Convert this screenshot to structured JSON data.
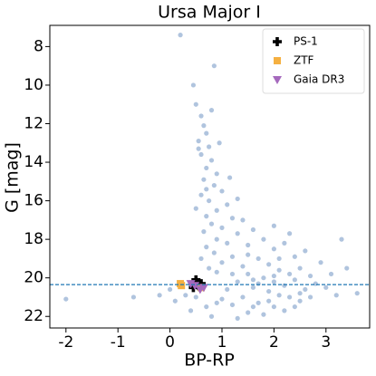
{
  "chart_data": {
    "type": "scatter",
    "title": "Ursa Major I",
    "x_label": "BP-RP",
    "y_label": "G [mag]",
    "xlim": [
      -2.31,
      3.84
    ],
    "ylim": [
      22.6,
      6.9
    ],
    "y_inverted": true,
    "xticks": [
      -2,
      -1,
      0,
      1,
      2,
      3
    ],
    "yticks": [
      8,
      10,
      12,
      14,
      16,
      18,
      20,
      22
    ],
    "hline": 20.35,
    "hline_color": "#1f77b4",
    "legend": "upper right",
    "series": [
      {
        "color": "#b0c4de",
        "marker": "circle",
        "x": [
          0.6,
          0.65,
          0.7,
          0.55,
          0.75,
          0.6,
          0.8,
          0.7,
          0.9,
          0.65,
          0.85,
          1.0,
          0.6,
          0.75,
          1.1,
          0.9,
          0.7,
          1.2,
          0.8,
          1.0,
          0.65,
          1.3,
          0.9,
          1.1,
          0.7,
          1.5,
          0.85,
          1.2,
          0.6,
          1.0,
          0.75,
          1.4,
          0.9,
          0.55,
          0.95,
          0.7,
          1.15,
          0.5,
          1.3,
          0.8,
          1.6,
          1.8,
          2.0,
          2.2,
          2.4,
          1.7,
          1.9,
          2.1,
          2.3,
          2.5,
          2.7,
          1.5,
          1.8,
          2.0,
          2.2,
          2.4,
          2.6,
          2.8,
          3.0,
          1.6,
          1.9,
          2.1,
          2.3,
          2.5,
          1.4,
          1.7,
          2.0,
          2.2,
          1.5,
          1.8,
          1.2,
          1.0,
          2.9,
          3.1,
          2.6,
          1.3,
          1.1,
          0.9,
          0.7,
          0.5,
          0.3,
          0.1,
          0.4,
          0.8,
          1.3,
          1.6,
          2.4,
          2.7,
          3.2,
          2.0,
          1.4,
          2.3,
          1.2,
          1.6,
          2.1,
          2.5,
          1.9,
          1.7,
          2.0,
          1.5,
          -2.0,
          -0.7,
          0.2,
          0.85,
          0.45,
          0.5,
          3.3,
          3.6,
          -0.2,
          0.0,
          3.4
        ],
        "values": [
          11.6,
          12.1,
          12.5,
          12.9,
          13.2,
          13.6,
          13.9,
          14.3,
          14.6,
          14.9,
          15.2,
          15.5,
          15.7,
          16.0,
          16.2,
          16.5,
          16.8,
          16.9,
          17.2,
          17.4,
          17.6,
          17.7,
          18.0,
          18.2,
          18.4,
          18.3,
          18.7,
          18.9,
          19.0,
          19.2,
          19.5,
          19.4,
          19.7,
          13.3,
          13.0,
          15.4,
          14.8,
          16.4,
          15.9,
          11.3,
          17.5,
          18.0,
          18.5,
          18.2,
          18.9,
          19.0,
          19.3,
          19.6,
          19.8,
          19.5,
          19.9,
          19.8,
          20.0,
          20.2,
          20.4,
          20.1,
          20.6,
          20.3,
          20.5,
          20.5,
          20.7,
          20.9,
          21.0,
          21.2,
          21.0,
          21.3,
          21.5,
          21.7,
          21.8,
          21.9,
          21.4,
          21.1,
          19.2,
          19.8,
          18.6,
          20.2,
          20.6,
          21.3,
          21.5,
          21.0,
          20.9,
          21.2,
          21.7,
          22.0,
          22.1,
          21.5,
          21.5,
          21.0,
          20.9,
          17.3,
          17.0,
          17.7,
          19.8,
          20.1,
          19.0,
          20.8,
          21.2,
          20.3,
          19.9,
          18.8,
          21.1,
          21.0,
          7.4,
          9.0,
          10.0,
          11.0,
          18.0,
          20.8,
          20.9,
          20.6,
          19.5
        ]
      },
      {
        "name": "PS-1",
        "color": "#000000",
        "marker": "plus",
        "x": [
          0.5,
          0.55,
          0.45,
          0.6,
          0.5
        ],
        "values": [
          20.2,
          20.4,
          20.5,
          20.3,
          20.1
        ]
      },
      {
        "name": "ZTF",
        "color": "#f5b041",
        "marker": "square",
        "x": [
          0.2,
          0.22,
          0.6
        ],
        "values": [
          20.3,
          20.4,
          20.5
        ]
      },
      {
        "name": "Gaia DR3",
        "color": "#a569bd",
        "marker": "triangle_down",
        "x": [
          0.48,
          0.58,
          0.4,
          0.65
        ],
        "values": [
          20.4,
          20.6,
          20.3,
          20.5
        ]
      }
    ]
  }
}
